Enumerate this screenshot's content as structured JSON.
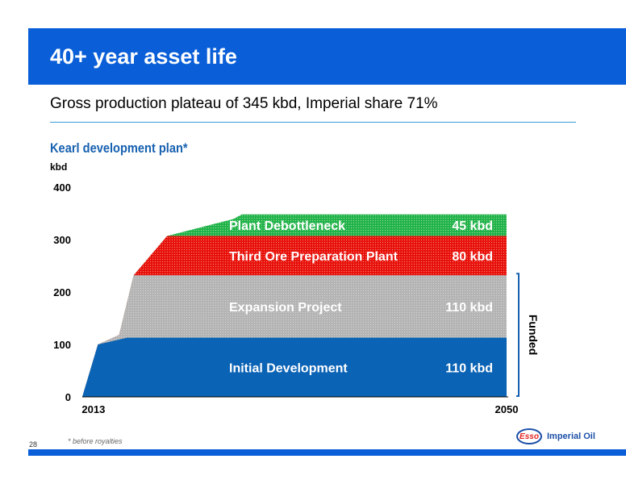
{
  "header": {
    "title": "40+ year asset life"
  },
  "subtitle": "Gross production plateau of 345 kbd, Imperial share 71%",
  "chart_data": {
    "type": "area",
    "title": "Kearl development plan*",
    "ylabel": "kbd",
    "ylim": [
      0,
      400
    ],
    "yticks": [
      0,
      100,
      200,
      300,
      400
    ],
    "xticks": [
      2013,
      2050
    ],
    "xlim": [
      2012,
      2050
    ],
    "grid": false,
    "colors": {
      "initial": "#0b63b5",
      "expansion": "#b4b4b4",
      "third": "#e8120c",
      "debottleneck": "#22b34a"
    },
    "series": [
      {
        "name": "Initial Development",
        "label": "110 kbd",
        "ticks": [
          [
            2012,
            0
          ],
          [
            2013.4,
            100
          ],
          [
            2016,
            113
          ],
          [
            2050,
            113
          ]
        ]
      },
      {
        "name": "Expansion Project",
        "label": "110 kbd",
        "ticks": [
          [
            2012,
            0
          ],
          [
            2013.4,
            100
          ],
          [
            2015.3,
            118
          ],
          [
            2016.6,
            232
          ],
          [
            2050,
            232
          ]
        ]
      },
      {
        "name": "Third Ore Preparation Plant",
        "label": "80 kbd",
        "ticks": [
          [
            2012,
            0
          ],
          [
            2013.4,
            100
          ],
          [
            2015.3,
            118
          ],
          [
            2016.6,
            232
          ],
          [
            2019.6,
            307
          ],
          [
            2050,
            307
          ]
        ]
      },
      {
        "name": "Plant Debottleneck",
        "label": "45 kbd",
        "ticks": [
          [
            2012,
            0
          ],
          [
            2013.4,
            100
          ],
          [
            2015.3,
            118
          ],
          [
            2016.6,
            232
          ],
          [
            2019.6,
            307
          ],
          [
            2025.5,
            339
          ],
          [
            2026.3,
            348
          ],
          [
            2050,
            348
          ]
        ]
      }
    ],
    "annotation": "Funded"
  },
  "footnote": "* before royalties",
  "page_number": "28",
  "logo": {
    "mark": "Esso",
    "text": "Imperial Oil"
  }
}
